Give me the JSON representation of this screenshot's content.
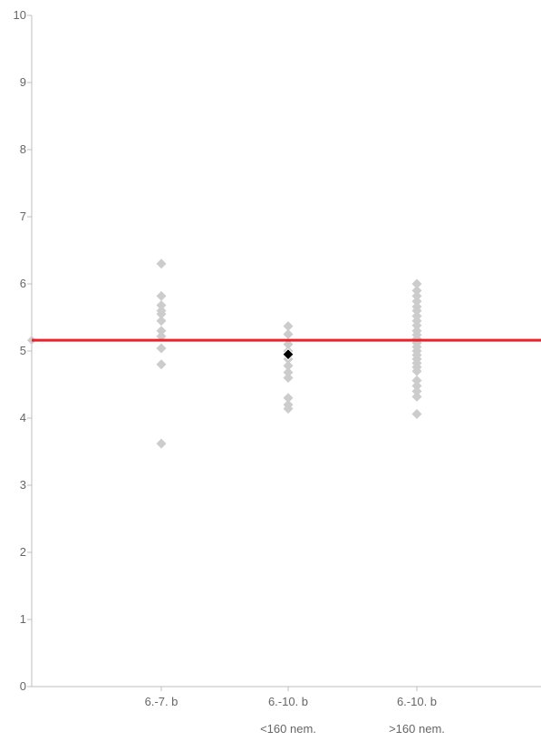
{
  "chart_data": {
    "type": "scatter",
    "title": "",
    "xlabel": "",
    "ylabel": "",
    "ylim": [
      0,
      10
    ],
    "yticks": [
      "0",
      "1",
      "2",
      "3",
      "4",
      "5",
      "6",
      "7",
      "8",
      "9",
      "10"
    ],
    "grid": false,
    "legend": "none",
    "categories": [
      {
        "line1": "6.-7. b",
        "line2": ""
      },
      {
        "line1": "6.-10. b",
        "line2": "<160 nem."
      },
      {
        "line1": "6.-10. b",
        "line2": ">160 nem."
      }
    ],
    "series": [
      {
        "category": 0,
        "values": [
          6.3,
          5.82,
          5.68,
          5.6,
          5.55,
          5.45,
          5.3,
          5.22,
          5.04,
          4.8,
          3.62
        ]
      },
      {
        "category": 1,
        "values": [
          5.37,
          5.25,
          5.1,
          5.0,
          4.88,
          4.78,
          4.68,
          4.6,
          4.3,
          4.2,
          4.14
        ]
      },
      {
        "category": 2,
        "values": [
          6.0,
          5.9,
          5.82,
          5.74,
          5.66,
          5.6,
          5.52,
          5.45,
          5.38,
          5.3,
          5.24,
          5.18,
          5.12,
          5.06,
          5.0,
          4.94,
          4.88,
          4.82,
          4.76,
          4.7,
          4.56,
          4.48,
          4.4,
          4.32,
          4.06
        ]
      }
    ],
    "highlight": {
      "category": 1,
      "value": 4.95,
      "color": "#000000"
    },
    "reference_line": {
      "value": 5.16,
      "color": "#e8222a"
    },
    "colors": {
      "point": "#cccccc",
      "axis": "#bfbfbf",
      "tick_text": "#666666"
    }
  }
}
